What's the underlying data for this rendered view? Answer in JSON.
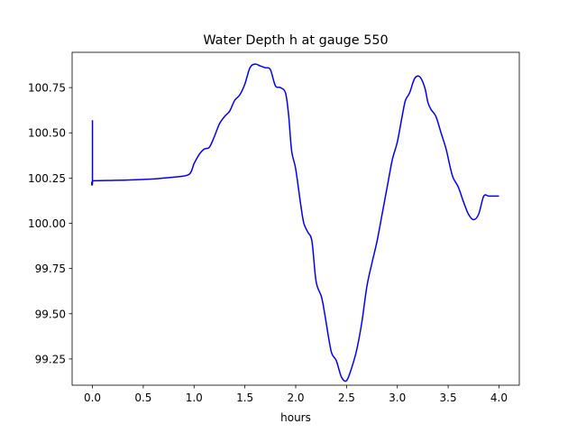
{
  "chart_data": {
    "type": "line",
    "title": "Water Depth h at gauge 550",
    "xlabel": "hours",
    "ylabel": "",
    "xlim": [
      -0.2,
      4.2
    ],
    "ylim": [
      99.105,
      100.945
    ],
    "grid": false,
    "xticks": [
      0.0,
      0.5,
      1.0,
      1.5,
      2.0,
      2.5,
      3.0,
      3.5,
      4.0
    ],
    "xtick_labels": [
      "0.0",
      "0.5",
      "1.0",
      "1.5",
      "2.0",
      "2.5",
      "3.0",
      "3.5",
      "4.0"
    ],
    "yticks": [
      99.25,
      99.5,
      99.75,
      100.0,
      100.25,
      100.5,
      100.75
    ],
    "ytick_labels": [
      "99.25",
      "99.50",
      "99.75",
      "100.00",
      "100.25",
      "100.50",
      "100.75"
    ],
    "series": [
      {
        "color": "#0000ff",
        "x": [
          0.0,
          0.0,
          0.01,
          0.2,
          0.4,
          0.6,
          0.7,
          0.8,
          0.95,
          1.0,
          1.05,
          1.1,
          1.15,
          1.2,
          1.25,
          1.3,
          1.35,
          1.4,
          1.45,
          1.5,
          1.55,
          1.6,
          1.65,
          1.7,
          1.75,
          1.8,
          1.85,
          1.9,
          1.93,
          1.96,
          2.0,
          2.05,
          2.08,
          2.12,
          2.16,
          2.2,
          2.25,
          2.27,
          2.3,
          2.35,
          2.4,
          2.45,
          2.5,
          2.55,
          2.6,
          2.65,
          2.7,
          2.75,
          2.8,
          2.85,
          2.9,
          2.95,
          3.0,
          3.05,
          3.08,
          3.12,
          3.17,
          3.22,
          3.27,
          3.3,
          3.33,
          3.38,
          3.43,
          3.48,
          3.52,
          3.55,
          3.6,
          3.65,
          3.7,
          3.75,
          3.8,
          3.85,
          3.9,
          3.95,
          4.0
        ],
        "values": [
          100.57,
          100.235,
          100.235,
          100.237,
          100.24,
          100.245,
          100.25,
          100.255,
          100.27,
          100.33,
          100.38,
          100.41,
          100.42,
          100.48,
          100.55,
          100.59,
          100.62,
          100.68,
          100.71,
          100.77,
          100.86,
          100.88,
          100.87,
          100.86,
          100.85,
          100.76,
          100.75,
          100.72,
          100.6,
          100.4,
          100.3,
          100.1,
          100.0,
          99.95,
          99.9,
          99.68,
          99.6,
          99.55,
          99.45,
          99.29,
          99.24,
          99.15,
          99.13,
          99.2,
          99.3,
          99.45,
          99.65,
          99.78,
          99.9,
          100.05,
          100.2,
          100.35,
          100.45,
          100.6,
          100.68,
          100.72,
          100.8,
          100.81,
          100.75,
          100.67,
          100.63,
          100.59,
          100.5,
          100.41,
          100.31,
          100.25,
          100.2,
          100.12,
          100.05,
          100.02,
          100.05,
          100.15,
          100.15,
          100.15,
          100.15
        ]
      }
    ]
  }
}
